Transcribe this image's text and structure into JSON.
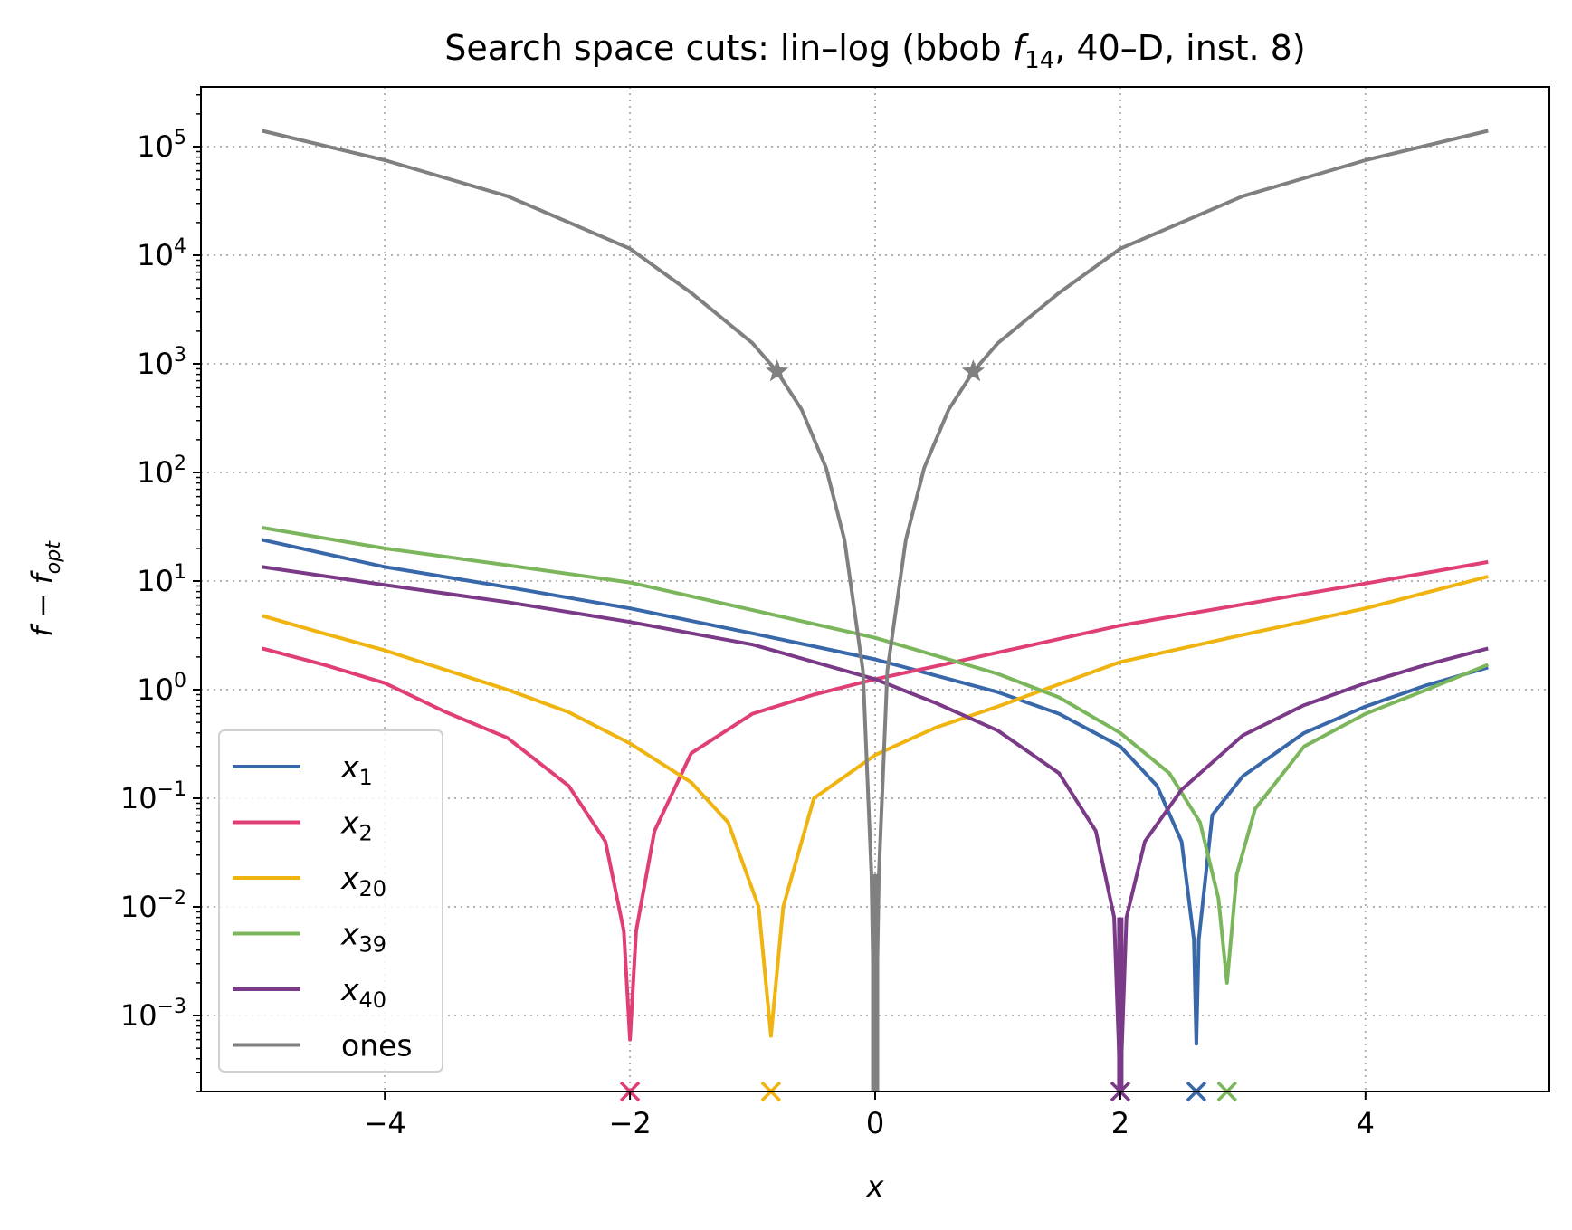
{
  "chart_data": {
    "type": "line",
    "title": {
      "prefix": "Search space cuts: lin–log (bbob ",
      "func_symbol": "f",
      "func_sub": "14",
      "suffix": ", 40–D, inst. 8)"
    },
    "xlabel": "x",
    "ylabel": {
      "main": "f − f",
      "sub": "opt"
    },
    "xlim": [
      -5.5,
      5.5
    ],
    "ylim_log10": [
      -3.7,
      5.55
    ],
    "y_scale": "log",
    "grid": true,
    "x_ticks": [
      {
        "value": -4,
        "label": "−4"
      },
      {
        "value": -2,
        "label": "−2"
      },
      {
        "value": 0,
        "label": "0"
      },
      {
        "value": 2,
        "label": "2"
      },
      {
        "value": 4,
        "label": "4"
      }
    ],
    "y_ticks": [
      {
        "exp": 5,
        "base": "10",
        "sup": "5"
      },
      {
        "exp": 4,
        "base": "10",
        "sup": "4"
      },
      {
        "exp": 3,
        "base": "10",
        "sup": "3"
      },
      {
        "exp": 2,
        "base": "10",
        "sup": "2"
      },
      {
        "exp": 1,
        "base": "10",
        "sup": "1"
      },
      {
        "exp": 0,
        "base": "10",
        "sup": "0"
      },
      {
        "exp": -1,
        "base": "10",
        "sup": "−1"
      },
      {
        "exp": -2,
        "base": "10",
        "sup": "−2"
      },
      {
        "exp": -3,
        "base": "10",
        "sup": "−3"
      }
    ],
    "legend_position": "lower-left",
    "series": [
      {
        "name": "x",
        "sub": "1",
        "color": "#3968aa",
        "points": [
          [
            -5,
            24
          ],
          [
            -4,
            13.5
          ],
          [
            -3,
            8.8
          ],
          [
            -2,
            5.6
          ],
          [
            -1,
            3.3
          ],
          [
            0,
            1.9
          ],
          [
            1,
            0.95
          ],
          [
            1.5,
            0.6
          ],
          [
            2,
            0.3
          ],
          [
            2.3,
            0.13
          ],
          [
            2.5,
            0.04
          ],
          [
            2.6,
            0.005
          ],
          [
            2.62,
            0.00055
          ],
          [
            2.64,
            0.005
          ],
          [
            2.75,
            0.07
          ],
          [
            3,
            0.16
          ],
          [
            3.5,
            0.4
          ],
          [
            4,
            0.7
          ],
          [
            4.5,
            1.1
          ],
          [
            5,
            1.6
          ]
        ],
        "marker_x": 2.62
      },
      {
        "name": "x",
        "sub": "2",
        "color": "#e03f74",
        "points": [
          [
            -5,
            2.4
          ],
          [
            -4.5,
            1.7
          ],
          [
            -4,
            1.15
          ],
          [
            -3.5,
            0.62
          ],
          [
            -3,
            0.36
          ],
          [
            -2.5,
            0.13
          ],
          [
            -2.2,
            0.04
          ],
          [
            -2.05,
            0.006
          ],
          [
            -2,
            0.0006
          ],
          [
            -1.95,
            0.006
          ],
          [
            -1.8,
            0.05
          ],
          [
            -1.5,
            0.26
          ],
          [
            -1,
            0.6
          ],
          [
            -0.5,
            0.9
          ],
          [
            0,
            1.25
          ],
          [
            0.5,
            1.65
          ],
          [
            1,
            2.2
          ],
          [
            2,
            3.9
          ],
          [
            3,
            6.1
          ],
          [
            4,
            9.5
          ],
          [
            5,
            15
          ]
        ],
        "marker_x": -2
      },
      {
        "name": "x",
        "sub": "20",
        "color": "#f0b410",
        "points": [
          [
            -5,
            4.8
          ],
          [
            -4.5,
            3.3
          ],
          [
            -4,
            2.3
          ],
          [
            -3,
            1
          ],
          [
            -2.5,
            0.62
          ],
          [
            -2,
            0.32
          ],
          [
            -1.5,
            0.14
          ],
          [
            -1.2,
            0.06
          ],
          [
            -0.95,
            0.01
          ],
          [
            -0.85,
            0.00065
          ],
          [
            -0.75,
            0.01
          ],
          [
            -0.5,
            0.1
          ],
          [
            0,
            0.25
          ],
          [
            0.5,
            0.45
          ],
          [
            1,
            0.7
          ],
          [
            2,
            1.8
          ],
          [
            3,
            3.2
          ],
          [
            4,
            5.6
          ],
          [
            5,
            11
          ]
        ],
        "marker_x": -0.85
      },
      {
        "name": "x",
        "sub": "39",
        "color": "#7cb65c",
        "points": [
          [
            -5,
            31
          ],
          [
            -4,
            20
          ],
          [
            -3,
            14
          ],
          [
            -2,
            9.7
          ],
          [
            -1,
            5.4
          ],
          [
            0,
            3
          ],
          [
            1,
            1.4
          ],
          [
            1.5,
            0.85
          ],
          [
            2,
            0.4
          ],
          [
            2.4,
            0.17
          ],
          [
            2.65,
            0.06
          ],
          [
            2.8,
            0.012
          ],
          [
            2.87,
            0.002
          ],
          [
            2.95,
            0.02
          ],
          [
            3.1,
            0.08
          ],
          [
            3.5,
            0.3
          ],
          [
            4,
            0.6
          ],
          [
            4.5,
            1
          ],
          [
            5,
            1.7
          ]
        ],
        "marker_x": 2.87
      },
      {
        "name": "x",
        "sub": "40",
        "color": "#7a3a88",
        "points": [
          [
            -5,
            13.5
          ],
          [
            -4,
            9.2
          ],
          [
            -3,
            6.4
          ],
          [
            -2,
            4.2
          ],
          [
            -1,
            2.6
          ],
          [
            0,
            1.25
          ],
          [
            0.5,
            0.75
          ],
          [
            1,
            0.42
          ],
          [
            1.5,
            0.17
          ],
          [
            1.8,
            0.05
          ],
          [
            1.95,
            0.008
          ],
          [
            2,
            0.0002
          ],
          [
            2.05,
            0.008
          ],
          [
            2.2,
            0.04
          ],
          [
            2.5,
            0.12
          ],
          [
            3,
            0.38
          ],
          [
            3.5,
            0.72
          ],
          [
            4,
            1.15
          ],
          [
            4.5,
            1.7
          ],
          [
            5,
            2.4
          ]
        ],
        "marker_x": 2
      },
      {
        "name": "ones",
        "sub": "",
        "color": "#808080",
        "points": [
          [
            -5,
            140000
          ],
          [
            -4,
            75000
          ],
          [
            -3,
            35000
          ],
          [
            -2,
            11500
          ],
          [
            -1.5,
            4500
          ],
          [
            -1,
            1550
          ],
          [
            -0.8,
            850
          ],
          [
            -0.6,
            380
          ],
          [
            -0.4,
            110
          ],
          [
            -0.25,
            24
          ],
          [
            -0.1,
            1.5
          ],
          [
            -0.03,
            0.02
          ],
          [
            0,
            0.0002
          ],
          [
            0.03,
            0.02
          ],
          [
            0.1,
            1.5
          ],
          [
            0.25,
            24
          ],
          [
            0.4,
            110
          ],
          [
            0.6,
            380
          ],
          [
            0.8,
            850
          ],
          [
            1,
            1550
          ],
          [
            1.5,
            4500
          ],
          [
            2,
            11500
          ],
          [
            3,
            35000
          ],
          [
            4,
            75000
          ],
          [
            5,
            140000
          ]
        ],
        "star_x": [
          -0.8,
          0.8
        ]
      }
    ]
  }
}
